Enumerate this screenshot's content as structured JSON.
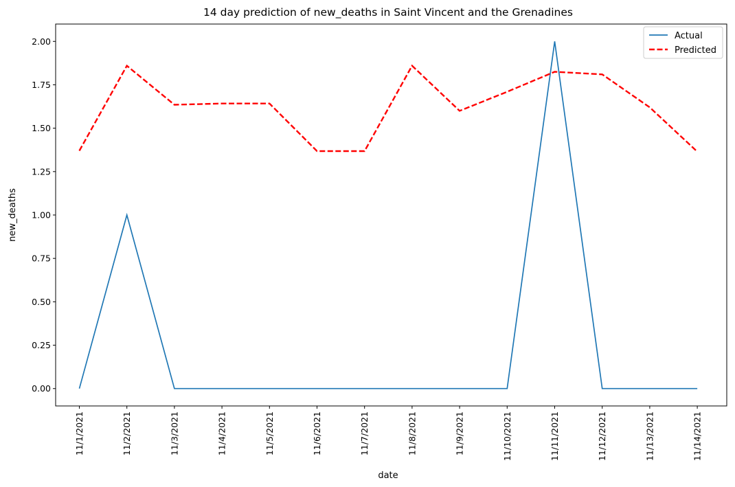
{
  "chart_data": {
    "type": "line",
    "title": "14 day prediction of new_deaths in Saint Vincent and the Grenadines",
    "xlabel": "date",
    "ylabel": "new_deaths",
    "categories": [
      "11/1/2021",
      "11/2/2021",
      "11/3/2021",
      "11/4/2021",
      "11/5/2021",
      "11/6/2021",
      "11/7/2021",
      "11/8/2021",
      "11/9/2021",
      "11/10/2021",
      "11/11/2021",
      "11/12/2021",
      "11/13/2021",
      "11/14/2021"
    ],
    "ylim": [
      -0.1,
      2.1
    ],
    "yticks": [
      0.0,
      0.25,
      0.5,
      0.75,
      1.0,
      1.25,
      1.5,
      1.75,
      2.0
    ],
    "ytick_labels": [
      "0.00",
      "0.25",
      "0.50",
      "0.75",
      "1.00",
      "1.25",
      "1.50",
      "1.75",
      "2.00"
    ],
    "legend_position": "top-right",
    "series": [
      {
        "name": "Actual",
        "color": "#1f77b4",
        "style": "solid",
        "values": [
          0,
          1,
          0,
          0,
          0,
          0,
          0,
          0,
          0,
          0,
          2,
          0,
          0,
          0
        ]
      },
      {
        "name": "Predicted",
        "color": "#ff0000",
        "style": "dashed",
        "values": [
          1.37,
          1.86,
          1.635,
          1.642,
          1.642,
          1.368,
          1.368,
          1.86,
          1.6,
          1.71,
          1.825,
          1.81,
          1.62,
          1.365
        ]
      }
    ]
  }
}
